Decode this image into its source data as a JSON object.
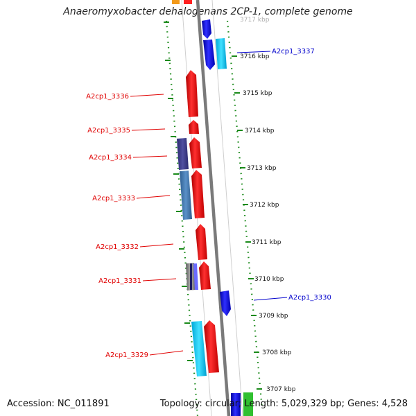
{
  "header": {
    "title": "Anaeromyxobacter dehalogenans 2CP-1, complete genome"
  },
  "footer": {
    "accession": "Accession: NC_011891",
    "summary": "Topology: circular; Length: 5,029,329 bp; Genes: 4,528"
  },
  "scale": {
    "labels": [
      "3717 kbp",
      "3716 kbp",
      "3715 kbp",
      "3714 kbp",
      "3713 kbp",
      "3712 kbp",
      "3711 kbp",
      "3710 kbp",
      "3709 kbp",
      "3708 kbp",
      "3707 kbp"
    ]
  },
  "gene_labels": {
    "left": [
      "A2cp1_3336",
      "A2cp1_3335",
      "A2cp1_3334",
      "A2cp1_3333",
      "A2cp1_3332",
      "A2cp1_3331",
      "A2cp1_3329"
    ],
    "right": [
      "A2cp1_3337",
      "A2cp1_3330"
    ]
  },
  "colors": {
    "forward_cds": "#ff0000",
    "reverse_cds": "#0000ff",
    "label_forward": "#e00000",
    "label_reverse": "#0000cc",
    "backbone": "#7a7a7a",
    "ticks": "#1a8a1a"
  }
}
